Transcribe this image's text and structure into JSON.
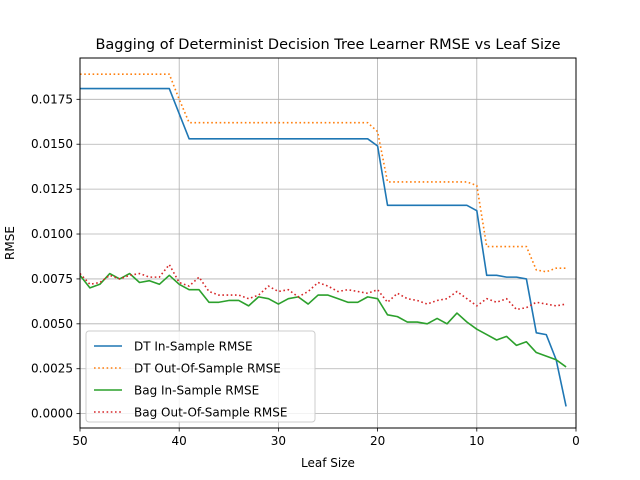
{
  "chart_data": {
    "type": "line",
    "title": "Bagging of Determinist Decision Tree Learner RMSE vs Leaf Size",
    "xlabel": "Leaf Size",
    "ylabel": "RMSE",
    "xlim": [
      50,
      0
    ],
    "ylim": [
      -0.0008,
      0.0198
    ],
    "x_ticks": [
      50,
      40,
      30,
      20,
      10,
      0
    ],
    "x_tick_labels": [
      "50",
      "40",
      "30",
      "20",
      "10",
      "0"
    ],
    "y_ticks": [
      0.0,
      0.0025,
      0.005,
      0.0075,
      0.01,
      0.0125,
      0.015,
      0.0175
    ],
    "y_tick_labels": [
      "0.0000",
      "0.0025",
      "0.0050",
      "0.0075",
      "0.0100",
      "0.0125",
      "0.0150",
      "0.0175"
    ],
    "grid": true,
    "legend_position": "lower-left",
    "x": [
      50,
      49,
      48,
      47,
      46,
      45,
      44,
      43,
      42,
      41,
      40,
      39,
      38,
      37,
      36,
      35,
      34,
      33,
      32,
      31,
      30,
      29,
      28,
      27,
      26,
      25,
      24,
      23,
      22,
      21,
      20,
      19,
      18,
      17,
      16,
      15,
      14,
      13,
      12,
      11,
      10,
      9,
      8,
      7,
      6,
      5,
      4,
      3,
      2,
      1
    ],
    "series": [
      {
        "name": "DT In-Sample RMSE",
        "color": "#1f77b4",
        "style": "solid",
        "values": [
          0.0181,
          0.0181,
          0.0181,
          0.0181,
          0.0181,
          0.0181,
          0.0181,
          0.0181,
          0.0181,
          0.0181,
          0.0167,
          0.0153,
          0.0153,
          0.0153,
          0.0153,
          0.0153,
          0.0153,
          0.0153,
          0.0153,
          0.0153,
          0.0153,
          0.0153,
          0.0153,
          0.0153,
          0.0153,
          0.0153,
          0.0153,
          0.0153,
          0.0153,
          0.0153,
          0.0149,
          0.0116,
          0.0116,
          0.0116,
          0.0116,
          0.0116,
          0.0116,
          0.0116,
          0.0116,
          0.0116,
          0.0113,
          0.0077,
          0.0077,
          0.0076,
          0.0076,
          0.0075,
          0.0045,
          0.0044,
          0.003,
          0.0004
        ]
      },
      {
        "name": "DT Out-Of-Sample RMSE",
        "color": "#ff7f0e",
        "style": "dotted",
        "values": [
          0.0189,
          0.0189,
          0.0189,
          0.0189,
          0.0189,
          0.0189,
          0.0189,
          0.0189,
          0.0189,
          0.0189,
          0.0175,
          0.0162,
          0.0162,
          0.0162,
          0.0162,
          0.0162,
          0.0162,
          0.0162,
          0.0162,
          0.0162,
          0.0162,
          0.0162,
          0.0162,
          0.0162,
          0.0162,
          0.0162,
          0.0162,
          0.0162,
          0.0162,
          0.0162,
          0.0157,
          0.0129,
          0.0129,
          0.0129,
          0.0129,
          0.0129,
          0.0129,
          0.0129,
          0.0129,
          0.0129,
          0.0127,
          0.0093,
          0.0093,
          0.0093,
          0.0093,
          0.0093,
          0.008,
          0.0079,
          0.0081,
          0.0081
        ]
      },
      {
        "name": "Bag In-Sample RMSE",
        "color": "#2ca02c",
        "style": "solid",
        "values": [
          0.0077,
          0.007,
          0.0072,
          0.0078,
          0.0075,
          0.0078,
          0.0073,
          0.0074,
          0.0072,
          0.0077,
          0.0072,
          0.0069,
          0.0069,
          0.0062,
          0.0062,
          0.0063,
          0.0063,
          0.006,
          0.0065,
          0.0064,
          0.0061,
          0.0064,
          0.0065,
          0.0061,
          0.0066,
          0.0066,
          0.0064,
          0.0062,
          0.0062,
          0.0065,
          0.0064,
          0.0055,
          0.0054,
          0.0051,
          0.0051,
          0.005,
          0.0053,
          0.005,
          0.0056,
          0.0051,
          0.0047,
          0.0044,
          0.0041,
          0.0043,
          0.0038,
          0.004,
          0.0034,
          0.0032,
          0.003,
          0.0026
        ]
      },
      {
        "name": "Bag Out-Of-Sample RMSE",
        "color": "#d62728",
        "style": "dotted",
        "values": [
          0.0078,
          0.0072,
          0.0073,
          0.0077,
          0.0075,
          0.0077,
          0.0078,
          0.0076,
          0.0076,
          0.0083,
          0.0073,
          0.0071,
          0.0076,
          0.0068,
          0.0066,
          0.0066,
          0.0066,
          0.0064,
          0.0066,
          0.0071,
          0.0068,
          0.0069,
          0.0065,
          0.0068,
          0.0073,
          0.0071,
          0.0068,
          0.0069,
          0.0068,
          0.0067,
          0.0069,
          0.0062,
          0.0067,
          0.0064,
          0.0063,
          0.0061,
          0.0063,
          0.0064,
          0.0068,
          0.0064,
          0.006,
          0.0064,
          0.0062,
          0.0064,
          0.0058,
          0.0059,
          0.0062,
          0.0061,
          0.006,
          0.0061
        ]
      }
    ]
  }
}
